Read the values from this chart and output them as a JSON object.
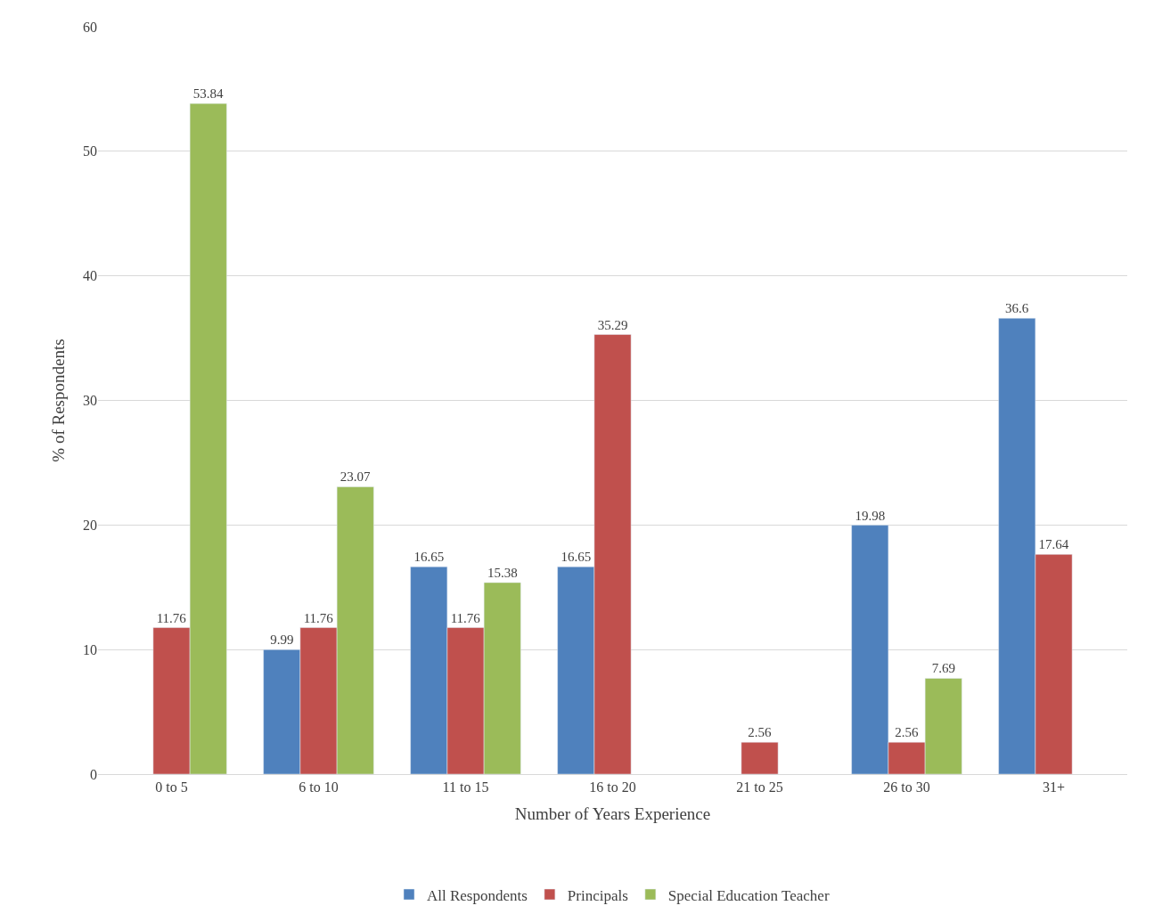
{
  "chart_data": {
    "type": "bar",
    "xlabel": "Number of Years Experience",
    "ylabel": "% of Respondents",
    "categories": [
      "0 to 5",
      "6 to 10",
      "11 to 15",
      "16 to 20",
      "21 to 25",
      "26 to 30",
      "31+"
    ],
    "series": [
      {
        "name": "All Respondents",
        "color": "#4f81bd",
        "values": [
          null,
          9.99,
          16.65,
          16.65,
          null,
          19.98,
          36.6
        ]
      },
      {
        "name": "Principals",
        "color": "#c0504d",
        "values": [
          11.76,
          11.76,
          11.76,
          35.29,
          2.56,
          2.56,
          17.64
        ]
      },
      {
        "name": "Special Education Teacher",
        "color": "#9bbb59",
        "values": [
          53.84,
          23.07,
          15.38,
          null,
          null,
          7.69,
          null
        ]
      }
    ],
    "ylim": [
      0,
      60
    ],
    "yticks": [
      0,
      10,
      20,
      30,
      40,
      50,
      60
    ],
    "grid": "y",
    "legend": "bottom",
    "data_labels": true
  }
}
